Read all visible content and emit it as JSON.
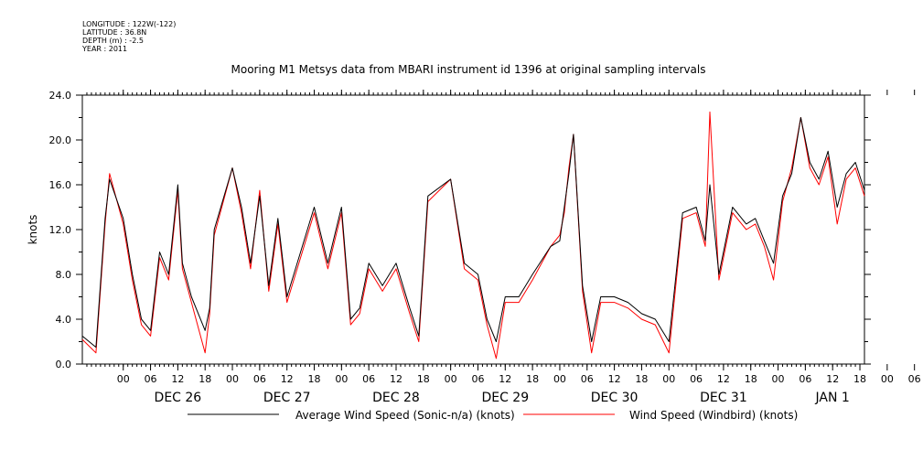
{
  "meta": {
    "longitude": "LONGITUDE : 122W(-122)",
    "latitude": "LATITUDE : 36.8N",
    "depth": "DEPTH (m) : -2.5",
    "year": "YEAR : 2011"
  },
  "chart_data": {
    "type": "line",
    "title": "Mooring M1 Metsys data from MBARI instrument id 1396 at original sampling intervals",
    "xlabel": "",
    "ylabel": "knots",
    "ylim": [
      0,
      24
    ],
    "xlim": [
      "2011-12-25 15:00",
      "2012-01-01 19:00"
    ],
    "y_ticks": [
      "0.0",
      "4.0",
      "8.0",
      "12.0",
      "16.0",
      "20.0",
      "24.0"
    ],
    "hour_ticks": [
      "00",
      "06",
      "12",
      "18",
      "00",
      "06",
      "12",
      "18",
      "00",
      "06",
      "12",
      "18",
      "00",
      "06",
      "12",
      "18",
      "00",
      "06",
      "12",
      "18",
      "00",
      "06",
      "12",
      "18",
      "00",
      "06",
      "12",
      "18",
      "00",
      "06",
      "12",
      "18"
    ],
    "day_labels": [
      "DEC 26",
      "DEC 27",
      "DEC 28",
      "DEC 29",
      "DEC 30",
      "DEC 31",
      "JAN  1"
    ],
    "grid": false,
    "legend_position": "bottom",
    "series": [
      {
        "name": "Average Wind Speed (Sonic-n/a) (knots)",
        "color": "#000000",
        "x": [
          "2011-12-25 15:00",
          "2011-12-25 18:00",
          "2011-12-25 20:00",
          "2011-12-25 21:00",
          "2011-12-26 00:00",
          "2011-12-26 02:00",
          "2011-12-26 04:00",
          "2011-12-26 06:00",
          "2011-12-26 08:00",
          "2011-12-26 10:00",
          "2011-12-26 12:00",
          "2011-12-26 13:00",
          "2011-12-26 15:00",
          "2011-12-26 18:00",
          "2011-12-26 19:00",
          "2011-12-26 20:00",
          "2011-12-27 00:00",
          "2011-12-27 02:00",
          "2011-12-27 04:00",
          "2011-12-27 06:00",
          "2011-12-27 08:00",
          "2011-12-27 10:00",
          "2011-12-27 12:00",
          "2011-12-27 15:00",
          "2011-12-27 18:00",
          "2011-12-27 21:00",
          "2011-12-28 00:00",
          "2011-12-28 02:00",
          "2011-12-28 04:00",
          "2011-12-28 06:00",
          "2011-12-28 09:00",
          "2011-12-28 12:00",
          "2011-12-28 15:00",
          "2011-12-28 17:00",
          "2011-12-28 19:00",
          "2011-12-29 00:00",
          "2011-12-29 03:00",
          "2011-12-29 06:00",
          "2011-12-29 08:00",
          "2011-12-29 10:00",
          "2011-12-29 12:00",
          "2011-12-29 15:00",
          "2011-12-29 18:00",
          "2011-12-29 22:00",
          "2011-12-30 00:00",
          "2011-12-30 01:00",
          "2011-12-30 02:00",
          "2011-12-30 03:00",
          "2011-12-30 05:00",
          "2011-12-30 07:00",
          "2011-12-30 09:00",
          "2011-12-30 12:00",
          "2011-12-30 15:00",
          "2011-12-30 18:00",
          "2011-12-30 21:00",
          "2011-12-31 00:00",
          "2011-12-31 03:00",
          "2011-12-31 06:00",
          "2011-12-31 08:00",
          "2011-12-31 09:00",
          "2011-12-31 11:00",
          "2011-12-31 12:00",
          "2011-12-31 14:00",
          "2011-12-31 15:00",
          "2011-12-31 17:00",
          "2011-12-31 19:00",
          "2011-12-31 21:00",
          "2011-12-31 23:00",
          "2012-01-01 01:00",
          "2012-01-01 03:00",
          "2012-01-01 05:00",
          "2012-01-01 07:00",
          "2012-01-01 09:00",
          "2012-01-01 11:00",
          "2012-01-01 13:00",
          "2012-01-01 15:00",
          "2012-01-01 17:00",
          "2012-01-01 19:00"
        ],
        "values": [
          2.5,
          1.5,
          13,
          16.5,
          13,
          8,
          4,
          3,
          10,
          8,
          16,
          9,
          6,
          3,
          5,
          12,
          17.5,
          14,
          9,
          15,
          7,
          13,
          6,
          10,
          14,
          9,
          14,
          4,
          5,
          9,
          7,
          9,
          5,
          2.5,
          15,
          16.5,
          9,
          8,
          4,
          2,
          6,
          6,
          8,
          10.5,
          11,
          14,
          17,
          20.5,
          7,
          2,
          6,
          6,
          5.5,
          4.5,
          4,
          2,
          13.5,
          14,
          11,
          16,
          8,
          10,
          14,
          13.5,
          12.5,
          13,
          11,
          9,
          15,
          17,
          22,
          18,
          16.5,
          19,
          14,
          17,
          18,
          15.5
        ]
      },
      {
        "name": "Wind Speed (Windbird) (knots)",
        "color": "#ff0000",
        "x": [
          "2011-12-25 15:00",
          "2011-12-25 18:00",
          "2011-12-25 20:00",
          "2011-12-25 21:00",
          "2011-12-26 00:00",
          "2011-12-26 02:00",
          "2011-12-26 04:00",
          "2011-12-26 06:00",
          "2011-12-26 08:00",
          "2011-12-26 10:00",
          "2011-12-26 12:00",
          "2011-12-26 13:00",
          "2011-12-26 15:00",
          "2011-12-26 18:00",
          "2011-12-26 19:00",
          "2011-12-26 20:00",
          "2011-12-27 00:00",
          "2011-12-27 02:00",
          "2011-12-27 04:00",
          "2011-12-27 06:00",
          "2011-12-27 08:00",
          "2011-12-27 10:00",
          "2011-12-27 12:00",
          "2011-12-27 15:00",
          "2011-12-27 18:00",
          "2011-12-27 21:00",
          "2011-12-28 00:00",
          "2011-12-28 02:00",
          "2011-12-28 04:00",
          "2011-12-28 06:00",
          "2011-12-28 09:00",
          "2011-12-28 12:00",
          "2011-12-28 15:00",
          "2011-12-28 17:00",
          "2011-12-28 19:00",
          "2011-12-29 00:00",
          "2011-12-29 03:00",
          "2011-12-29 06:00",
          "2011-12-29 08:00",
          "2011-12-29 10:00",
          "2011-12-29 12:00",
          "2011-12-29 15:00",
          "2011-12-29 18:00",
          "2011-12-29 22:00",
          "2011-12-30 00:00",
          "2011-12-30 01:00",
          "2011-12-30 02:00",
          "2011-12-30 03:00",
          "2011-12-30 05:00",
          "2011-12-30 07:00",
          "2011-12-30 09:00",
          "2011-12-30 12:00",
          "2011-12-30 15:00",
          "2011-12-30 18:00",
          "2011-12-30 21:00",
          "2011-12-31 00:00",
          "2011-12-31 03:00",
          "2011-12-31 06:00",
          "2011-12-31 08:00",
          "2011-12-31 09:00",
          "2011-12-31 11:00",
          "2011-12-31 12:00",
          "2011-12-31 14:00",
          "2011-12-31 15:00",
          "2011-12-31 17:00",
          "2011-12-31 19:00",
          "2011-12-31 21:00",
          "2011-12-31 23:00",
          "2012-01-01 01:00",
          "2012-01-01 03:00",
          "2012-01-01 05:00",
          "2012-01-01 07:00",
          "2012-01-01 09:00",
          "2012-01-01 11:00",
          "2012-01-01 13:00",
          "2012-01-01 15:00",
          "2012-01-01 17:00",
          "2012-01-01 19:00"
        ],
        "values": [
          2.2,
          1,
          12.5,
          17,
          12.5,
          7.5,
          3.5,
          2.5,
          9.5,
          7.5,
          15.5,
          8.5,
          5.5,
          1,
          4.5,
          11.5,
          17.5,
          13.5,
          8.5,
          15.5,
          6.5,
          12.5,
          5.5,
          9.5,
          13.5,
          8.5,
          13.5,
          3.5,
          4.5,
          8.5,
          6.5,
          8.5,
          4.5,
          2,
          14.5,
          16.5,
          8.5,
          7.5,
          3.5,
          0.5,
          5.5,
          5.5,
          7.5,
          10.5,
          11.5,
          13.5,
          17.5,
          20.5,
          6.5,
          1,
          5.5,
          5.5,
          5,
          4,
          3.5,
          1,
          13,
          13.5,
          10.5,
          22.5,
          7.5,
          9.5,
          13.5,
          13,
          12,
          12.5,
          10.5,
          7.5,
          14.5,
          17.5,
          22,
          17.5,
          16,
          18.5,
          12.5,
          16.5,
          17.5,
          15
        ]
      }
    ]
  }
}
